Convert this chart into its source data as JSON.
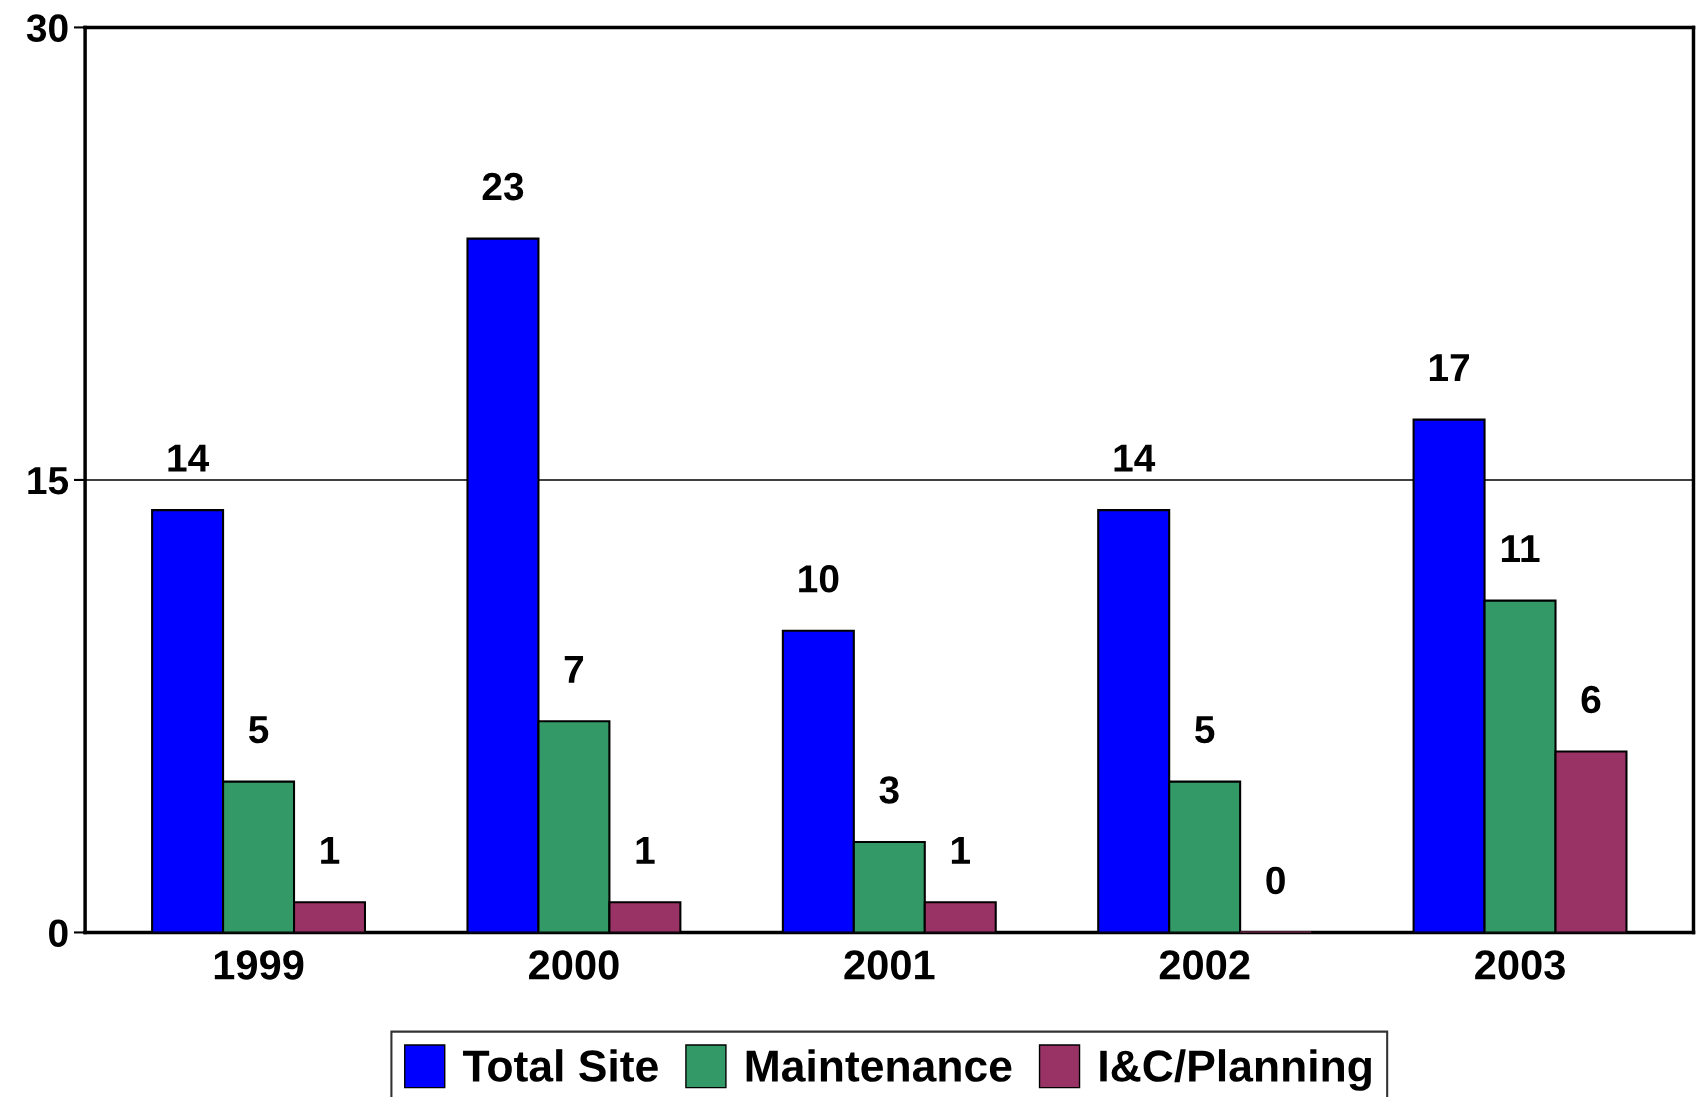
{
  "chart_data": {
    "type": "bar",
    "categories": [
      "1999",
      "2000",
      "2001",
      "2002",
      "2003"
    ],
    "series": [
      {
        "name": "Total Site",
        "color": "#0000ff",
        "values": [
          14,
          23,
          10,
          14,
          17
        ]
      },
      {
        "name": "Maintenance",
        "color": "#339966",
        "values": [
          5,
          7,
          3,
          5,
          11
        ]
      },
      {
        "name": "I&C/Planning",
        "color": "#993366",
        "values": [
          1,
          1,
          1,
          0,
          6
        ]
      }
    ],
    "ylim": [
      0,
      30
    ],
    "yticks": [
      0,
      15,
      30
    ],
    "grid": "y",
    "legend": "bottom",
    "data_labels": true
  }
}
